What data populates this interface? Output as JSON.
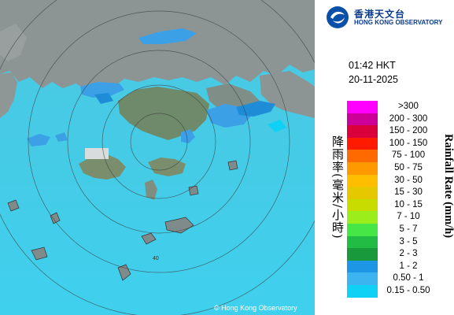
{
  "header": {
    "org_name_zh": "香港天文台",
    "org_name_en": "HONG KONG OBSERVATORY",
    "logo_icon": "hko-logo-icon"
  },
  "observation": {
    "time": "01:42 HKT",
    "date": "20-11-2025"
  },
  "legend": {
    "title_zh": "降雨率(毫米/小時)",
    "title_en": "Rainfall Rate (mm/h)",
    "bins": [
      {
        "label": ">300",
        "color": "#ff00ff"
      },
      {
        "label": "200 - 300",
        "color": "#cc0099"
      },
      {
        "label": "150 - 200",
        "color": "#d9003b"
      },
      {
        "label": "100 - 150",
        "color": "#ff1a00"
      },
      {
        "label": "75 - 100",
        "color": "#ff6a00"
      },
      {
        "label": "50 - 75",
        "color": "#ff9900"
      },
      {
        "label": "30 - 50",
        "color": "#ffbf00"
      },
      {
        "label": "15 - 30",
        "color": "#e6c800"
      },
      {
        "label": "10 - 15",
        "color": "#c8dc00"
      },
      {
        "label": "7 - 10",
        "color": "#9bee1c"
      },
      {
        "label": "5 - 7",
        "color": "#46e646"
      },
      {
        "label": "3 - 5",
        "color": "#22bb44"
      },
      {
        "label": "2 - 3",
        "color": "#189a3c"
      },
      {
        "label": "1 - 2",
        "color": "#1e96e6"
      },
      {
        "label": "0.50 - 1",
        "color": "#3cb4f0"
      },
      {
        "label": "0.15 - 0.50",
        "color": "#0fd0f5"
      }
    ]
  },
  "map": {
    "sea_color": "#47d0e8",
    "land_color": "#8c9494",
    "range_ring_label": "40",
    "copyright": "© Hong Kong Observatory"
  }
}
